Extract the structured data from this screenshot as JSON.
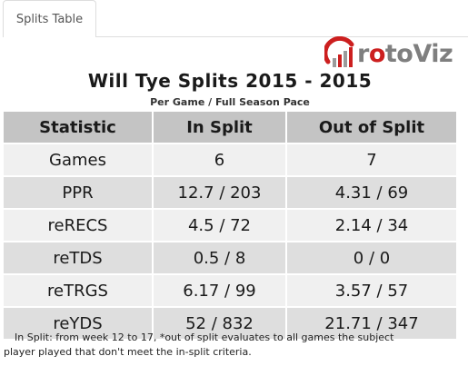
{
  "tabs": [
    {
      "label": "Splits Table"
    }
  ],
  "logo": {
    "prefix": "r",
    "o": "o",
    "suffix": "toViz",
    "accent": "#cc1f1f",
    "text_color": "#7f7f7f"
  },
  "title": "Will Tye Splits 2015 - 2015",
  "subtitle": "Per Game / Full Season Pace",
  "table": {
    "headers": [
      "Statistic",
      "In Split",
      "Out of Split"
    ],
    "rows": [
      [
        "Games",
        "6",
        "7"
      ],
      [
        "PPR",
        "12.7 / 203",
        "4.31 / 69"
      ],
      [
        "reRECS",
        "4.5 / 72",
        "2.14 / 34"
      ],
      [
        "reTDS",
        "0.5 / 8",
        "0 / 0"
      ],
      [
        "reTRGS",
        "6.17 / 99",
        "3.57 / 57"
      ],
      [
        "reYDS",
        "52 / 832",
        "21.71 / 347"
      ]
    ]
  },
  "footnote": {
    "line1": "In Split: from week 12 to 17,  *out of split evaluates to all games the subject",
    "line2": "player played that don't meet the in-split criteria."
  },
  "colors": {
    "header_bg": "#c4c4c4",
    "row_light": "#f0f0f0",
    "row_dark": "#dedede"
  }
}
